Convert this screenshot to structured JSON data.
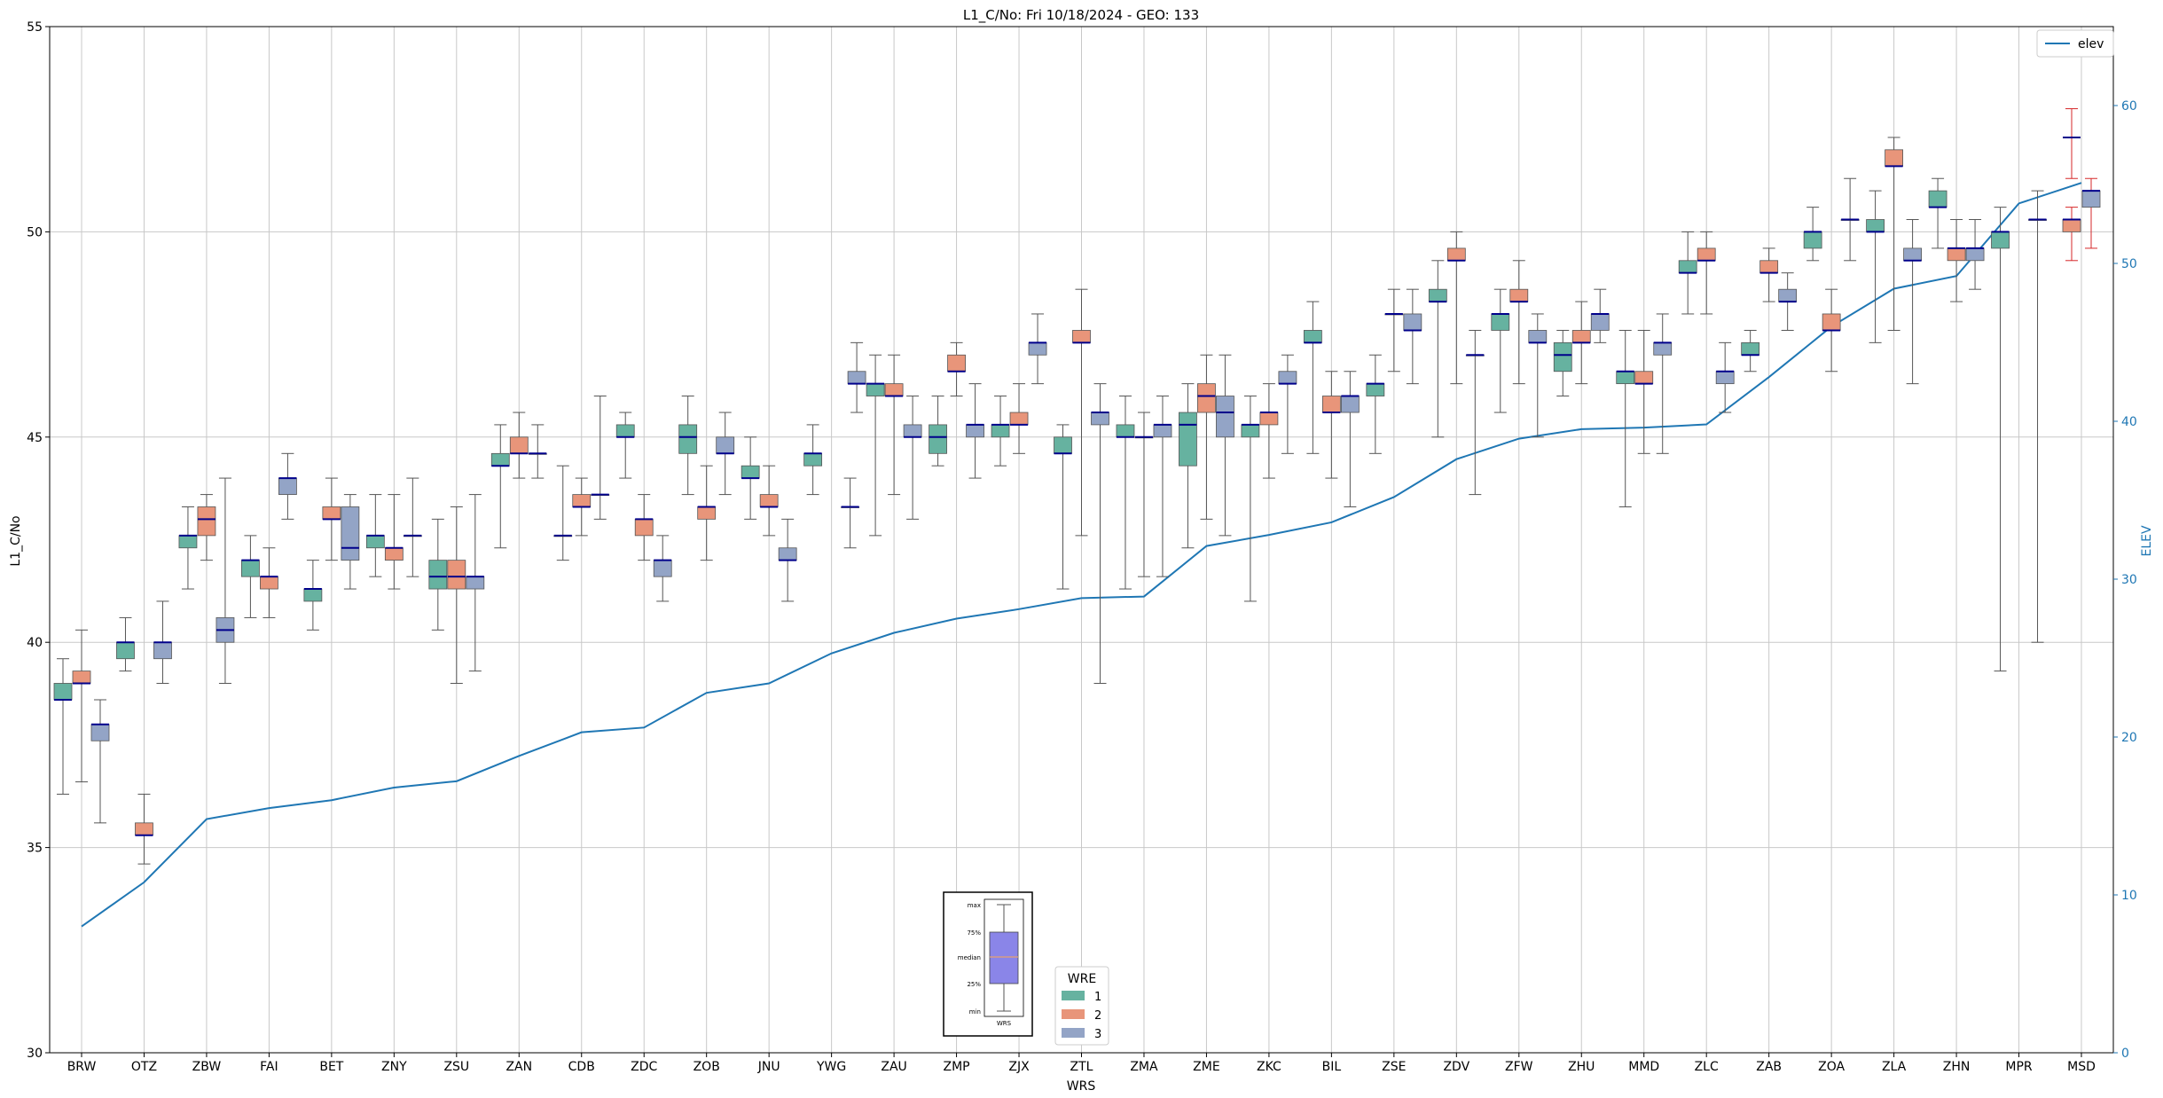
{
  "chart_data": {
    "type": "box",
    "title": "L1_C/No: Fri 10/18/2024 - GEO: 133",
    "xlabel": "WRS",
    "ylabel": "L1_C/No",
    "y2label": "ELEV",
    "ylim": [
      30,
      55
    ],
    "y2lim": [
      0,
      65
    ],
    "yticks": [
      30,
      35,
      40,
      45,
      50,
      55
    ],
    "y2ticks": [
      0,
      10,
      20,
      30,
      40,
      50,
      60
    ],
    "grid": true,
    "categories": [
      "BRW",
      "OTZ",
      "ZBW",
      "FAI",
      "BET",
      "ZNY",
      "ZSU",
      "ZAN",
      "CDB",
      "ZDC",
      "ZOB",
      "JNU",
      "YWG",
      "ZAU",
      "ZMP",
      "ZJX",
      "ZTL",
      "ZMA",
      "ZME",
      "ZKC",
      "BIL",
      "ZSE",
      "ZDV",
      "ZFW",
      "ZHU",
      "MMD",
      "ZLC",
      "ZAB",
      "ZOA",
      "ZLA",
      "ZHN",
      "MPR",
      "MSD"
    ],
    "colors": {
      "1": "#66b2a0",
      "2": "#e8957a",
      "3": "#93a4c6",
      "elev": "#1f77b4",
      "median": "#00008b",
      "whisker": "#555555",
      "red_whisker": "#d62728"
    },
    "boxes": [
      {
        "station": "BRW",
        "wre": 1,
        "min": 36.3,
        "q1": 38.6,
        "median": 38.6,
        "q3": 39.0,
        "max": 39.6
      },
      {
        "station": "BRW",
        "wre": 2,
        "min": 36.6,
        "q1": 39.0,
        "median": 39.0,
        "q3": 39.3,
        "max": 40.3
      },
      {
        "station": "BRW",
        "wre": 3,
        "min": 35.6,
        "q1": 37.6,
        "median": 38.0,
        "q3": 38.0,
        "max": 38.6
      },
      {
        "station": "OTZ",
        "wre": 1,
        "min": 39.3,
        "q1": 39.6,
        "median": 40.0,
        "q3": 40.0,
        "max": 40.6
      },
      {
        "station": "OTZ",
        "wre": 2,
        "min": 34.6,
        "q1": 35.3,
        "median": 35.3,
        "q3": 35.6,
        "max": 36.3
      },
      {
        "station": "OTZ",
        "wre": 3,
        "min": 39.0,
        "q1": 39.6,
        "median": 40.0,
        "q3": 40.0,
        "max": 41.0
      },
      {
        "station": "ZBW",
        "wre": 1,
        "min": 41.3,
        "q1": 42.3,
        "median": 42.6,
        "q3": 42.6,
        "max": 43.3
      },
      {
        "station": "ZBW",
        "wre": 2,
        "min": 42.0,
        "q1": 42.6,
        "median": 43.0,
        "q3": 43.3,
        "max": 43.6
      },
      {
        "station": "ZBW",
        "wre": 3,
        "min": 39.0,
        "q1": 40.0,
        "median": 40.3,
        "q3": 40.6,
        "max": 44.0
      },
      {
        "station": "FAI",
        "wre": 1,
        "min": 40.6,
        "q1": 41.6,
        "median": 42.0,
        "q3": 42.0,
        "max": 42.6
      },
      {
        "station": "FAI",
        "wre": 2,
        "min": 40.6,
        "q1": 41.3,
        "median": 41.6,
        "q3": 41.6,
        "max": 42.3
      },
      {
        "station": "FAI",
        "wre": 3,
        "min": 43.0,
        "q1": 43.6,
        "median": 44.0,
        "q3": 44.0,
        "max": 44.6
      },
      {
        "station": "BET",
        "wre": 1,
        "min": 40.3,
        "q1": 41.0,
        "median": 41.3,
        "q3": 41.3,
        "max": 42.0
      },
      {
        "station": "BET",
        "wre": 2,
        "min": 42.0,
        "q1": 43.0,
        "median": 43.0,
        "q3": 43.3,
        "max": 44.0
      },
      {
        "station": "BET",
        "wre": 3,
        "min": 41.3,
        "q1": 42.0,
        "median": 42.3,
        "q3": 43.3,
        "max": 43.6
      },
      {
        "station": "ZNY",
        "wre": 1,
        "min": 41.6,
        "q1": 42.3,
        "median": 42.6,
        "q3": 42.6,
        "max": 43.6
      },
      {
        "station": "ZNY",
        "wre": 2,
        "min": 41.3,
        "q1": 42.0,
        "median": 42.3,
        "q3": 42.3,
        "max": 43.6
      },
      {
        "station": "ZNY",
        "wre": 3,
        "min": 41.6,
        "q1": 42.6,
        "median": 42.6,
        "q3": 42.6,
        "max": 44.0
      },
      {
        "station": "ZSU",
        "wre": 1,
        "min": 40.3,
        "q1": 41.3,
        "median": 41.6,
        "q3": 42.0,
        "max": 43.0
      },
      {
        "station": "ZSU",
        "wre": 2,
        "min": 39.0,
        "q1": 41.3,
        "median": 41.6,
        "q3": 42.0,
        "max": 43.3
      },
      {
        "station": "ZSU",
        "wre": 3,
        "min": 39.3,
        "q1": 41.3,
        "median": 41.6,
        "q3": 41.6,
        "max": 43.6
      },
      {
        "station": "ZAN",
        "wre": 1,
        "min": 42.3,
        "q1": 44.3,
        "median": 44.3,
        "q3": 44.6,
        "max": 45.3
      },
      {
        "station": "ZAN",
        "wre": 2,
        "min": 44.0,
        "q1": 44.6,
        "median": 44.6,
        "q3": 45.0,
        "max": 45.6
      },
      {
        "station": "ZAN",
        "wre": 3,
        "min": 44.0,
        "q1": 44.6,
        "median": 44.6,
        "q3": 44.6,
        "max": 45.3
      },
      {
        "station": "CDB",
        "wre": 1,
        "min": 42.0,
        "q1": 42.6,
        "median": 42.6,
        "q3": 42.6,
        "max": 44.3
      },
      {
        "station": "CDB",
        "wre": 2,
        "min": 42.6,
        "q1": 43.3,
        "median": 43.3,
        "q3": 43.6,
        "max": 44.0
      },
      {
        "station": "CDB",
        "wre": 3,
        "min": 43.0,
        "q1": 43.6,
        "median": 43.6,
        "q3": 43.6,
        "max": 46.0
      },
      {
        "station": "ZDC",
        "wre": 1,
        "min": 44.0,
        "q1": 45.0,
        "median": 45.0,
        "q3": 45.3,
        "max": 45.6
      },
      {
        "station": "ZDC",
        "wre": 2,
        "min": 42.0,
        "q1": 42.6,
        "median": 43.0,
        "q3": 43.0,
        "max": 43.6
      },
      {
        "station": "ZDC",
        "wre": 3,
        "min": 41.0,
        "q1": 41.6,
        "median": 42.0,
        "q3": 42.0,
        "max": 42.6
      },
      {
        "station": "ZOB",
        "wre": 1,
        "min": 43.6,
        "q1": 44.6,
        "median": 45.0,
        "q3": 45.3,
        "max": 46.0
      },
      {
        "station": "ZOB",
        "wre": 2,
        "min": 42.0,
        "q1": 43.0,
        "median": 43.3,
        "q3": 43.3,
        "max": 44.3
      },
      {
        "station": "ZOB",
        "wre": 3,
        "min": 43.6,
        "q1": 44.6,
        "median": 44.6,
        "q3": 45.0,
        "max": 45.6
      },
      {
        "station": "JNU",
        "wre": 1,
        "min": 43.0,
        "q1": 44.0,
        "median": 44.0,
        "q3": 44.3,
        "max": 45.0
      },
      {
        "station": "JNU",
        "wre": 2,
        "min": 42.6,
        "q1": 43.3,
        "median": 43.3,
        "q3": 43.6,
        "max": 44.3
      },
      {
        "station": "JNU",
        "wre": 3,
        "min": 41.0,
        "q1": 42.0,
        "median": 42.0,
        "q3": 42.3,
        "max": 43.0
      },
      {
        "station": "YWG",
        "wre": 1,
        "min": 43.6,
        "q1": 44.3,
        "median": 44.6,
        "q3": 44.6,
        "max": 45.3
      },
      {
        "station": "YWG",
        "wre": 3,
        "min": 42.3,
        "q1": 43.3,
        "median": 43.3,
        "q3": 43.3,
        "max": 44.0
      },
      {
        "station": "ZAU",
        "wre": 3,
        "min": 45.6,
        "q1": 46.3,
        "median": 46.3,
        "q3": 46.6,
        "max": 47.3
      },
      {
        "station": "ZAU",
        "wre": 1,
        "min": 42.6,
        "q1": 46.0,
        "median": 46.3,
        "q3": 46.3,
        "max": 47.0
      },
      {
        "station": "ZAU",
        "wre": 2,
        "min": 43.6,
        "q1": 46.0,
        "median": 46.0,
        "q3": 46.3,
        "max": 47.0
      },
      {
        "station": "ZAU",
        "wre": 3,
        "min": 43.0,
        "q1": 45.0,
        "median": 45.0,
        "q3": 45.3,
        "max": 46.0
      },
      {
        "station": "ZMP",
        "wre": 1,
        "min": 44.3,
        "q1": 44.6,
        "median": 45.0,
        "q3": 45.3,
        "max": 46.0
      },
      {
        "station": "ZMP",
        "wre": 2,
        "min": 46.0,
        "q1": 46.6,
        "median": 46.6,
        "q3": 47.0,
        "max": 47.3
      },
      {
        "station": "ZMP",
        "wre": 3,
        "min": 44.0,
        "q1": 45.0,
        "median": 45.3,
        "q3": 45.3,
        "max": 46.3
      },
      {
        "station": "ZJX",
        "wre": 1,
        "min": 44.3,
        "q1": 45.0,
        "median": 45.3,
        "q3": 45.3,
        "max": 46.0
      },
      {
        "station": "ZJX",
        "wre": 2,
        "min": 44.6,
        "q1": 45.3,
        "median": 45.3,
        "q3": 45.6,
        "max": 46.3
      },
      {
        "station": "ZJX",
        "wre": 3,
        "min": 46.3,
        "q1": 47.0,
        "median": 47.3,
        "q3": 47.3,
        "max": 48.0
      },
      {
        "station": "ZTL",
        "wre": 1,
        "min": 41.3,
        "q1": 44.6,
        "median": 44.6,
        "q3": 45.0,
        "max": 45.3
      },
      {
        "station": "ZTL",
        "wre": 2,
        "min": 42.6,
        "q1": 47.3,
        "median": 47.3,
        "q3": 47.6,
        "max": 48.6
      },
      {
        "station": "ZTL",
        "wre": 3,
        "min": 39.0,
        "q1": 45.3,
        "median": 45.6,
        "q3": 45.6,
        "max": 46.3
      },
      {
        "station": "ZMA",
        "wre": 1,
        "min": 41.3,
        "q1": 45.0,
        "median": 45.0,
        "q3": 45.3,
        "max": 46.0
      },
      {
        "station": "ZMA",
        "wre": 2,
        "min": 41.6,
        "q1": 45.0,
        "median": 45.0,
        "q3": 45.0,
        "max": 45.6
      },
      {
        "station": "ZMA",
        "wre": 3,
        "min": 41.6,
        "q1": 45.0,
        "median": 45.3,
        "q3": 45.3,
        "max": 46.0
      },
      {
        "station": "ZME",
        "wre": 1,
        "min": 42.3,
        "q1": 44.3,
        "median": 45.3,
        "q3": 45.6,
        "max": 46.3
      },
      {
        "station": "ZME",
        "wre": 2,
        "min": 43.0,
        "q1": 45.6,
        "median": 46.0,
        "q3": 46.3,
        "max": 47.0
      },
      {
        "station": "ZME",
        "wre": 3,
        "min": 42.6,
        "q1": 45.0,
        "median": 45.6,
        "q3": 46.0,
        "max": 47.0
      },
      {
        "station": "ZKC",
        "wre": 1,
        "min": 41.0,
        "q1": 45.0,
        "median": 45.3,
        "q3": 45.3,
        "max": 46.0
      },
      {
        "station": "ZKC",
        "wre": 2,
        "min": 44.0,
        "q1": 45.3,
        "median": 45.6,
        "q3": 45.6,
        "max": 46.3
      },
      {
        "station": "ZKC",
        "wre": 3,
        "min": 44.6,
        "q1": 46.3,
        "median": 46.3,
        "q3": 46.6,
        "max": 47.0
      },
      {
        "station": "BIL",
        "wre": 1,
        "min": 44.6,
        "q1": 47.3,
        "median": 47.3,
        "q3": 47.6,
        "max": 48.3
      },
      {
        "station": "BIL",
        "wre": 2,
        "min": 44.0,
        "q1": 45.6,
        "median": 45.6,
        "q3": 46.0,
        "max": 46.6
      },
      {
        "station": "BIL",
        "wre": 3,
        "min": 43.3,
        "q1": 45.6,
        "median": 46.0,
        "q3": 46.0,
        "max": 46.6
      },
      {
        "station": "ZSE",
        "wre": 1,
        "min": 44.6,
        "q1": 46.0,
        "median": 46.3,
        "q3": 46.3,
        "max": 47.0
      },
      {
        "station": "ZSE",
        "wre": 2,
        "min": 46.6,
        "q1": 48.0,
        "median": 48.0,
        "q3": 48.0,
        "max": 48.6
      },
      {
        "station": "ZSE",
        "wre": 3,
        "min": 46.3,
        "q1": 47.6,
        "median": 47.6,
        "q3": 48.0,
        "max": 48.6
      },
      {
        "station": "ZDV",
        "wre": 1,
        "min": 45.0,
        "q1": 48.3,
        "median": 48.3,
        "q3": 48.6,
        "max": 49.3
      },
      {
        "station": "ZDV",
        "wre": 2,
        "min": 46.3,
        "q1": 49.3,
        "median": 49.3,
        "q3": 49.6,
        "max": 50.0
      },
      {
        "station": "ZDV",
        "wre": 3,
        "min": 43.6,
        "q1": 47.0,
        "median": 47.0,
        "q3": 47.0,
        "max": 47.6
      },
      {
        "station": "ZFW",
        "wre": 1,
        "min": 45.6,
        "q1": 47.6,
        "median": 48.0,
        "q3": 48.0,
        "max": 48.6
      },
      {
        "station": "ZFW",
        "wre": 2,
        "min": 46.3,
        "q1": 48.3,
        "median": 48.3,
        "q3": 48.6,
        "max": 49.3
      },
      {
        "station": "ZFW",
        "wre": 3,
        "min": 45.0,
        "q1": 47.3,
        "median": 47.3,
        "q3": 47.6,
        "max": 48.0
      },
      {
        "station": "ZHU",
        "wre": 1,
        "min": 46.0,
        "q1": 46.6,
        "median": 47.0,
        "q3": 47.3,
        "max": 47.6
      },
      {
        "station": "ZHU",
        "wre": 2,
        "min": 46.3,
        "q1": 47.3,
        "median": 47.3,
        "q3": 47.6,
        "max": 48.3
      },
      {
        "station": "ZHU",
        "wre": 3,
        "min": 47.3,
        "q1": 47.6,
        "median": 48.0,
        "q3": 48.0,
        "max": 48.6
      },
      {
        "station": "MMD",
        "wre": 1,
        "min": 43.3,
        "q1": 46.3,
        "median": 46.6,
        "q3": 46.6,
        "max": 47.6
      },
      {
        "station": "MMD",
        "wre": 2,
        "min": 44.6,
        "q1": 46.3,
        "median": 46.3,
        "q3": 46.6,
        "max": 47.6
      },
      {
        "station": "MMD",
        "wre": 3,
        "min": 44.6,
        "q1": 47.0,
        "median": 47.3,
        "q3": 47.3,
        "max": 48.0
      },
      {
        "station": "ZLC",
        "wre": 1,
        "min": 48.0,
        "q1": 49.0,
        "median": 49.0,
        "q3": 49.3,
        "max": 50.0
      },
      {
        "station": "ZLC",
        "wre": 2,
        "min": 48.0,
        "q1": 49.3,
        "median": 49.3,
        "q3": 49.6,
        "max": 50.0
      },
      {
        "station": "ZLC",
        "wre": 3,
        "min": 45.6,
        "q1": 46.3,
        "median": 46.6,
        "q3": 46.6,
        "max": 47.3
      },
      {
        "station": "ZAB",
        "wre": 1,
        "min": 46.6,
        "q1": 47.0,
        "median": 47.0,
        "q3": 47.3,
        "max": 47.6
      },
      {
        "station": "ZAB",
        "wre": 2,
        "min": 48.3,
        "q1": 49.0,
        "median": 49.0,
        "q3": 49.3,
        "max": 49.6
      },
      {
        "station": "ZAB",
        "wre": 3,
        "min": 47.6,
        "q1": 48.3,
        "median": 48.3,
        "q3": 48.6,
        "max": 49.0
      },
      {
        "station": "ZOA",
        "wre": 1,
        "min": 49.3,
        "q1": 49.6,
        "median": 50.0,
        "q3": 50.0,
        "max": 50.6
      },
      {
        "station": "ZOA",
        "wre": 2,
        "min": 46.6,
        "q1": 47.6,
        "median": 47.6,
        "q3": 48.0,
        "max": 48.6
      },
      {
        "station": "ZOA",
        "wre": 3,
        "min": 49.3,
        "q1": 50.3,
        "median": 50.3,
        "q3": 50.3,
        "max": 51.3
      },
      {
        "station": "ZLA",
        "wre": 1,
        "min": 47.3,
        "q1": 50.0,
        "median": 50.0,
        "q3": 50.3,
        "max": 51.0
      },
      {
        "station": "ZLA",
        "wre": 2,
        "min": 47.6,
        "q1": 51.6,
        "median": 51.6,
        "q3": 52.0,
        "max": 52.3
      },
      {
        "station": "ZLA",
        "wre": 3,
        "min": 46.3,
        "q1": 49.3,
        "median": 49.3,
        "q3": 49.6,
        "max": 50.3
      },
      {
        "station": "ZHN",
        "wre": 1,
        "min": 49.6,
        "q1": 50.6,
        "median": 50.6,
        "q3": 51.0,
        "max": 51.3
      },
      {
        "station": "ZHN",
        "wre": 2,
        "min": 48.3,
        "q1": 49.3,
        "median": 49.6,
        "q3": 49.6,
        "max": 50.3
      },
      {
        "station": "ZHN",
        "wre": 3,
        "min": 48.6,
        "q1": 49.3,
        "median": 49.6,
        "q3": 49.6,
        "max": 50.3
      },
      {
        "station": "MPR",
        "wre": 1,
        "min": 39.3,
        "q1": 49.6,
        "median": 50.0,
        "q3": 50.0,
        "max": 50.6
      },
      {
        "station": "MPR",
        "wre": 3,
        "min": 40.0,
        "q1": 50.3,
        "median": 50.3,
        "q3": 50.3,
        "max": 51.0
      },
      {
        "station": "MSD",
        "wre": 2,
        "min": 49.3,
        "q1": 50.0,
        "median": 50.3,
        "q3": 50.3,
        "max": 50.6,
        "outlier": "red"
      },
      {
        "station": "MSD",
        "wre": 3,
        "min": 49.6,
        "q1": 50.6,
        "median": 51.0,
        "q3": 51.0,
        "max": 51.3,
        "outlier": "red"
      },
      {
        "station": "MSD",
        "wre": 2,
        "min": 51.3,
        "q1": 52.3,
        "median": 52.3,
        "q3": 52.3,
        "max": 53.0,
        "red_only": true
      }
    ],
    "elev_series": {
      "name": "elev",
      "x": [
        "BRW",
        "OTZ",
        "ZBW",
        "FAI",
        "BET",
        "ZNY",
        "ZSU",
        "ZAN",
        "CDB",
        "ZDC",
        "ZOB",
        "JNU",
        "YWG",
        "ZAU",
        "ZMP",
        "ZJX",
        "ZTL",
        "ZMA",
        "ZME",
        "ZKC",
        "BIL",
        "ZSE",
        "ZDV",
        "ZFW",
        "ZHU",
        "MMD",
        "ZLC",
        "ZAB",
        "ZOA",
        "ZLA",
        "ZHN",
        "MPR",
        "MSD"
      ],
      "y": [
        8.0,
        10.8,
        14.8,
        15.5,
        16.0,
        16.8,
        17.2,
        18.8,
        20.3,
        20.6,
        22.8,
        23.4,
        25.3,
        26.6,
        27.5,
        28.1,
        28.8,
        28.9,
        32.1,
        32.8,
        33.6,
        35.2,
        37.6,
        38.9,
        39.5,
        39.6,
        39.8,
        42.8,
        46.0,
        48.4,
        49.2,
        53.8,
        55.1
      ]
    },
    "legends": {
      "elev_label": "elev",
      "wre_title": "WRE",
      "wre_items": [
        "1",
        "2",
        "3"
      ]
    },
    "inset": {
      "labels": [
        "max",
        "75%",
        "median",
        "25%",
        "min"
      ],
      "xlabel": "WRS"
    }
  }
}
